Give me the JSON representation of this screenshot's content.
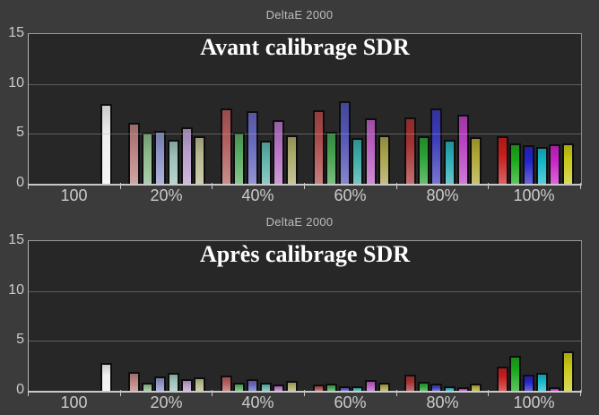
{
  "page": {
    "background": "#3b3b3b",
    "plot_background": "#272727",
    "grid_color": "#aFaFaF",
    "title_color": "#ffffff",
    "label_color": "#cbcbcb"
  },
  "chart_data": [
    {
      "type": "bar",
      "axis_title": "DeltaE 2000",
      "title": "Avant calibrage SDR",
      "ylabel": "DeltaE 2000",
      "ylim": [
        0,
        15
      ],
      "yticks": [
        "15",
        "10",
        "5",
        "0"
      ],
      "grid": true,
      "legend": "none",
      "categories": [
        "100",
        "20%",
        "40%",
        "60%",
        "80%",
        "100%"
      ],
      "groups": [
        {
          "category": "100",
          "bars": [
            {
              "name": "white",
              "color": "#f0f0f0",
              "value": 7.8
            }
          ]
        },
        {
          "category": "20%",
          "bars": [
            {
              "name": "red",
              "color": "#b98080",
              "value": 5.9
            },
            {
              "name": "green",
              "color": "#8ab88a",
              "value": 4.9
            },
            {
              "name": "blue",
              "color": "#8a92c6",
              "value": 5.1
            },
            {
              "name": "cyan",
              "color": "#9cc2ba",
              "value": 4.2
            },
            {
              "name": "magenta",
              "color": "#b69cca",
              "value": 5.5
            },
            {
              "name": "yellow",
              "color": "#b8b88e",
              "value": 4.6
            }
          ]
        },
        {
          "category": "40%",
          "bars": [
            {
              "name": "red",
              "color": "#b25c5c",
              "value": 7.4
            },
            {
              "name": "green",
              "color": "#58aa60",
              "value": 4.9
            },
            {
              "name": "blue",
              "color": "#6668be",
              "value": 7.1
            },
            {
              "name": "cyan",
              "color": "#60b2aa",
              "value": 4.1
            },
            {
              "name": "magenta",
              "color": "#b470c2",
              "value": 6.2
            },
            {
              "name": "yellow",
              "color": "#aaaa6a",
              "value": 4.7
            }
          ]
        },
        {
          "category": "60%",
          "bars": [
            {
              "name": "red",
              "color": "#ac4a4a",
              "value": 7.2
            },
            {
              "name": "green",
              "color": "#42a04c",
              "value": 5.0
            },
            {
              "name": "blue",
              "color": "#5254b4",
              "value": 8.1
            },
            {
              "name": "cyan",
              "color": "#3caaa8",
              "value": 4.4
            },
            {
              "name": "magenta",
              "color": "#b85ec0",
              "value": 6.4
            },
            {
              "name": "yellow",
              "color": "#a8a24c",
              "value": 4.7
            }
          ]
        },
        {
          "category": "80%",
          "bars": [
            {
              "name": "red",
              "color": "#a63232",
              "value": 6.5
            },
            {
              "name": "green",
              "color": "#2aa034",
              "value": 4.6
            },
            {
              "name": "blue",
              "color": "#3c3cbc",
              "value": 7.4
            },
            {
              "name": "cyan",
              "color": "#2aacb6",
              "value": 4.2
            },
            {
              "name": "magenta",
              "color": "#ba42c2",
              "value": 6.7
            },
            {
              "name": "yellow",
              "color": "#aea836",
              "value": 4.5
            }
          ]
        },
        {
          "category": "100%",
          "bars": [
            {
              "name": "red",
              "color": "#c81e1e",
              "value": 4.6
            },
            {
              "name": "green",
              "color": "#1ca81c",
              "value": 3.9
            },
            {
              "name": "blue",
              "color": "#2424cc",
              "value": 3.7
            },
            {
              "name": "cyan",
              "color": "#14b6c8",
              "value": 3.5
            },
            {
              "name": "magenta",
              "color": "#c824c8",
              "value": 3.8
            },
            {
              "name": "yellow",
              "color": "#c8c818",
              "value": 3.9
            }
          ]
        }
      ]
    },
    {
      "type": "bar",
      "axis_title": "DeltaE 2000",
      "title": "Après calibrage SDR",
      "ylabel": "DeltaE 2000",
      "ylim": [
        0,
        15
      ],
      "yticks": [
        "15",
        "10",
        "5",
        "0"
      ],
      "grid": true,
      "legend": "none",
      "categories": [
        "100",
        "20%",
        "40%",
        "60%",
        "80%",
        "100%"
      ],
      "groups": [
        {
          "category": "100",
          "bars": [
            {
              "name": "white",
              "color": "#f0f0f0",
              "value": 2.6
            }
          ]
        },
        {
          "category": "20%",
          "bars": [
            {
              "name": "red",
              "color": "#b98080",
              "value": 1.7
            },
            {
              "name": "green",
              "color": "#8ab88a",
              "value": 0.6
            },
            {
              "name": "blue",
              "color": "#8a92c6",
              "value": 1.3
            },
            {
              "name": "cyan",
              "color": "#9cc2ba",
              "value": 1.6
            },
            {
              "name": "magenta",
              "color": "#b69cca",
              "value": 1.0
            },
            {
              "name": "yellow",
              "color": "#b8b88e",
              "value": 1.2
            }
          ]
        },
        {
          "category": "40%",
          "bars": [
            {
              "name": "red",
              "color": "#b25c5c",
              "value": 1.35
            },
            {
              "name": "green",
              "color": "#58aa60",
              "value": 0.6
            },
            {
              "name": "blue",
              "color": "#6668be",
              "value": 1.0
            },
            {
              "name": "cyan",
              "color": "#60b2aa",
              "value": 0.65
            },
            {
              "name": "magenta",
              "color": "#b470c2",
              "value": 0.45
            },
            {
              "name": "yellow",
              "color": "#aaaa6a",
              "value": 0.8
            }
          ]
        },
        {
          "category": "60%",
          "bars": [
            {
              "name": "red",
              "color": "#ac4a4a",
              "value": 0.45
            },
            {
              "name": "green",
              "color": "#42a04c",
              "value": 0.5
            },
            {
              "name": "blue",
              "color": "#5254b4",
              "value": 0.3
            },
            {
              "name": "cyan",
              "color": "#3caaa8",
              "value": 0.3
            },
            {
              "name": "magenta",
              "color": "#b85ec0",
              "value": 0.9
            },
            {
              "name": "yellow",
              "color": "#a8a24c",
              "value": 0.65
            }
          ]
        },
        {
          "category": "80%",
          "bars": [
            {
              "name": "red",
              "color": "#a63232",
              "value": 1.45
            },
            {
              "name": "green",
              "color": "#2aa034",
              "value": 0.75
            },
            {
              "name": "blue",
              "color": "#3c3cbc",
              "value": 0.5
            },
            {
              "name": "cyan",
              "color": "#2aacb6",
              "value": 0.3
            },
            {
              "name": "magenta",
              "color": "#ba42c2",
              "value": 0.1
            },
            {
              "name": "yellow",
              "color": "#aea836",
              "value": 0.5
            }
          ]
        },
        {
          "category": "100%",
          "bars": [
            {
              "name": "red",
              "color": "#c81e1e",
              "value": 2.25
            },
            {
              "name": "green",
              "color": "#1ca81c",
              "value": 3.3
            },
            {
              "name": "blue",
              "color": "#2424cc",
              "value": 1.4
            },
            {
              "name": "cyan",
              "color": "#14b6c8",
              "value": 1.6
            },
            {
              "name": "magenta",
              "color": "#c824c8",
              "value": 0.1
            },
            {
              "name": "yellow",
              "color": "#c8c818",
              "value": 3.8
            }
          ]
        }
      ]
    }
  ]
}
